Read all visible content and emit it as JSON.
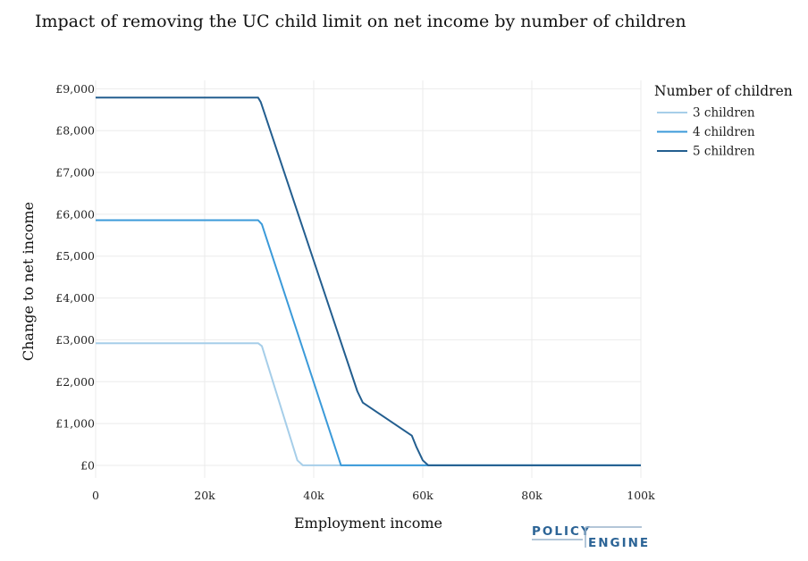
{
  "chart_data": {
    "type": "line",
    "title": "Impact of removing the UC child limit on net income by number of children",
    "xlabel": "Employment income",
    "ylabel": "Change to net income",
    "xlim": [
      0,
      100000
    ],
    "ylim": [
      -300,
      9200
    ],
    "x_ticks": [
      0,
      20000,
      40000,
      60000,
      80000,
      100000
    ],
    "x_tick_labels": [
      "0",
      "20k",
      "40k",
      "60k",
      "80k",
      "100k"
    ],
    "y_ticks": [
      0,
      1000,
      2000,
      3000,
      4000,
      5000,
      6000,
      7000,
      8000,
      9000
    ],
    "y_tick_labels": [
      "£0",
      "£1,000",
      "£2,000",
      "£3,000",
      "£4,000",
      "£5,000",
      "£6,000",
      "£7,000",
      "£8,000",
      "£9,000"
    ],
    "grid": true,
    "legend": {
      "title": "Number of children",
      "placement": "top-right"
    },
    "series": [
      {
        "name": "3 children",
        "color": "#a6cee9",
        "x": [
          0,
          29000,
          29800,
          30500,
          37000,
          38000,
          39000,
          100000
        ],
        "y": [
          2920,
          2920,
          2920,
          2850,
          120,
          0,
          0,
          0
        ]
      },
      {
        "name": "4 children",
        "color": "#3b9ad9",
        "x": [
          0,
          29000,
          29800,
          30500,
          45000,
          45500,
          100000
        ],
        "y": [
          5860,
          5860,
          5860,
          5760,
          0,
          0,
          0
        ]
      },
      {
        "name": "5 children",
        "color": "#235e8f",
        "x": [
          0,
          29000,
          29800,
          30300,
          48000,
          49000,
          58000,
          58800,
          60000,
          61000,
          62000,
          100000
        ],
        "y": [
          8790,
          8790,
          8790,
          8680,
          1770,
          1500,
          710,
          450,
          120,
          0,
          0,
          0
        ]
      }
    ]
  },
  "branding": {
    "logo_line1": "POLICY",
    "logo_line2": "ENGINE"
  }
}
